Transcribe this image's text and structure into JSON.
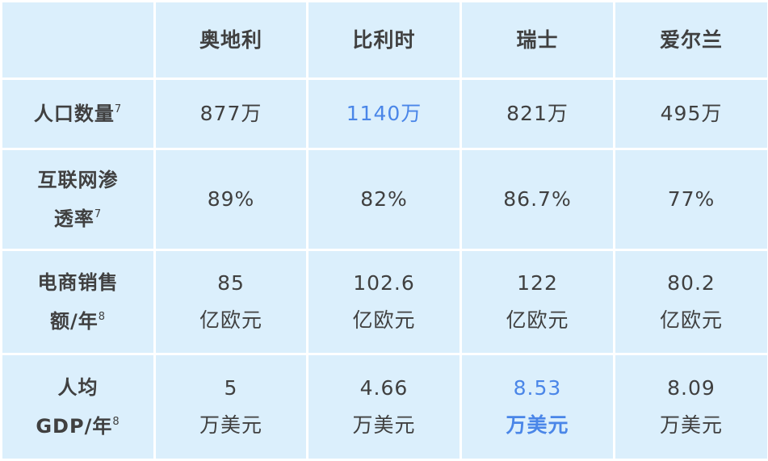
{
  "colors": {
    "cell_bg": "#dbeffc",
    "text": "#404040",
    "highlight": "#4a86e8"
  },
  "header": {
    "corner": "",
    "columns": [
      "奥地利",
      "比利时",
      "瑞士",
      "爱尔兰"
    ]
  },
  "rows": [
    {
      "label": [
        "人口数量"
      ],
      "sup": "7",
      "cells": [
        [
          "877万"
        ],
        [
          "1140万"
        ],
        [
          "821万"
        ],
        [
          "495万"
        ]
      ]
    },
    {
      "label": [
        "互联网渗",
        "透率"
      ],
      "sup": "7",
      "cells": [
        [
          "89%"
        ],
        [
          "82%"
        ],
        [
          "86.7%"
        ],
        [
          "77%"
        ]
      ]
    },
    {
      "label": [
        "电商销售",
        "额/年"
      ],
      "sup": "8",
      "cells": [
        [
          "85",
          "亿欧元"
        ],
        [
          "102.6",
          "亿欧元"
        ],
        [
          "122",
          "亿欧元"
        ],
        [
          "80.2",
          "亿欧元"
        ]
      ]
    },
    {
      "label": [
        "人均",
        "GDP/年"
      ],
      "sup": "8",
      "cells": [
        [
          "5",
          "万美元"
        ],
        [
          "4.66",
          "万美元"
        ],
        [
          "8.53",
          "万美元"
        ],
        [
          "8.09",
          "万美元"
        ]
      ]
    }
  ],
  "highlighted": [
    "比利时 人口数量",
    "瑞士 人均GDP/年"
  ]
}
